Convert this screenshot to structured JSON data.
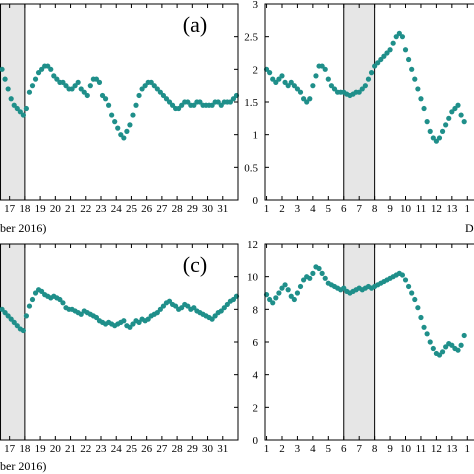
{
  "chart_data": [
    {
      "type": "scatter",
      "panel_label": "(a)",
      "xlabel": "ber 2016)",
      "ylabel": "",
      "ylim": null,
      "x_ticks": [
        "17",
        "18",
        "19",
        "20",
        "21",
        "22",
        "23",
        "24",
        "25",
        "26",
        "27",
        "28",
        "29",
        "30",
        "31"
      ],
      "y_ticks": [],
      "shaded_day_range": [
        16.4,
        18
      ],
      "marker_color": "#1f8f8a",
      "series": [
        {
          "x": [
            16.3,
            16.5,
            16.7,
            16.9,
            17.1,
            17.3,
            17.5,
            17.7,
            17.9,
            18.1,
            18.3,
            18.5,
            18.7,
            18.9,
            19.1,
            19.3,
            19.5,
            19.7,
            19.9,
            20.1,
            20.3,
            20.5,
            20.7,
            20.9,
            21.1,
            21.3,
            21.5,
            21.7,
            21.9,
            22.1,
            22.3,
            22.5,
            22.7,
            22.9,
            23.1,
            23.3,
            23.5,
            23.7,
            23.9,
            24.1,
            24.3,
            24.5,
            24.7,
            24.9,
            25.1,
            25.3,
            25.5,
            25.7,
            25.9,
            26.1,
            26.3,
            26.5,
            26.7,
            26.9,
            27.1,
            27.3,
            27.5,
            27.7,
            27.9,
            28.1,
            28.3,
            28.5,
            28.7,
            28.9,
            29.1,
            29.3,
            29.5,
            29.7,
            29.9,
            30.1,
            30.3,
            30.5,
            30.7,
            30.9,
            31.1,
            31.3,
            31.5,
            31.7,
            31.9
          ],
          "y": [
            2.1,
            2.0,
            1.85,
            1.7,
            1.55,
            1.45,
            1.4,
            1.35,
            1.3,
            1.4,
            1.65,
            1.75,
            1.85,
            1.95,
            2.0,
            2.05,
            2.05,
            2.0,
            1.9,
            1.85,
            1.8,
            1.8,
            1.75,
            1.7,
            1.7,
            1.75,
            1.8,
            1.7,
            1.65,
            1.6,
            1.75,
            1.85,
            1.85,
            1.8,
            1.6,
            1.55,
            1.45,
            1.3,
            1.2,
            1.1,
            1.0,
            0.95,
            1.05,
            1.15,
            1.3,
            1.45,
            1.6,
            1.7,
            1.75,
            1.8,
            1.8,
            1.75,
            1.7,
            1.65,
            1.6,
            1.55,
            1.5,
            1.45,
            1.4,
            1.4,
            1.45,
            1.5,
            1.5,
            1.45,
            1.45,
            1.5,
            1.5,
            1.45,
            1.45,
            1.45,
            1.45,
            1.5,
            1.5,
            1.45,
            1.5,
            1.5,
            1.5,
            1.55,
            1.6
          ]
        }
      ]
    },
    {
      "type": "scatter",
      "panel_label": "",
      "xlabel": "D",
      "ylabel": "",
      "ylim": [
        0,
        3
      ],
      "x_ticks": [
        "1",
        "2",
        "3",
        "4",
        "5",
        "6",
        "7",
        "8",
        "9",
        "10",
        "11",
        "12",
        "13",
        "1"
      ],
      "y_ticks": [
        "0",
        "0.5",
        "1",
        "1.5",
        "2",
        "2.5",
        "3"
      ],
      "shaded_day_range": [
        6,
        8
      ],
      "marker_color": "#1f8f8a",
      "series": [
        {
          "x": [
            1.0,
            1.2,
            1.4,
            1.6,
            1.8,
            2.0,
            2.2,
            2.4,
            2.6,
            2.8,
            3.0,
            3.2,
            3.4,
            3.6,
            3.8,
            4.0,
            4.2,
            4.4,
            4.6,
            4.8,
            5.0,
            5.2,
            5.4,
            5.6,
            5.8,
            6.0,
            6.2,
            6.4,
            6.6,
            6.8,
            7.0,
            7.2,
            7.4,
            7.6,
            7.8,
            8.0,
            8.2,
            8.4,
            8.6,
            8.8,
            9.0,
            9.2,
            9.4,
            9.6,
            9.8,
            10.0,
            10.2,
            10.4,
            10.6,
            10.8,
            11.0,
            11.2,
            11.4,
            11.6,
            11.8,
            12.0,
            12.2,
            12.4,
            12.6,
            12.8,
            13.0,
            13.2,
            13.4,
            13.6,
            13.8
          ],
          "y": [
            2.0,
            1.95,
            1.85,
            1.8,
            1.85,
            1.9,
            1.8,
            1.75,
            1.8,
            1.75,
            1.7,
            1.65,
            1.55,
            1.5,
            1.55,
            1.75,
            1.9,
            2.05,
            2.05,
            2.0,
            1.85,
            1.75,
            1.7,
            1.65,
            1.65,
            1.65,
            1.62,
            1.6,
            1.62,
            1.65,
            1.65,
            1.7,
            1.75,
            1.85,
            1.95,
            2.05,
            2.1,
            2.15,
            2.2,
            2.25,
            2.3,
            2.4,
            2.5,
            2.55,
            2.5,
            2.3,
            2.15,
            2.0,
            1.85,
            1.7,
            1.55,
            1.4,
            1.2,
            1.05,
            0.95,
            0.9,
            0.95,
            1.05,
            1.15,
            1.25,
            1.35,
            1.4,
            1.45,
            1.3,
            1.2
          ]
        }
      ]
    },
    {
      "type": "scatter",
      "panel_label": "(c)",
      "xlabel": "ber 2016)",
      "ylabel": "",
      "ylim": null,
      "x_ticks": [
        "17",
        "18",
        "19",
        "20",
        "21",
        "22",
        "23",
        "24",
        "25",
        "26",
        "27",
        "28",
        "29",
        "30",
        "31"
      ],
      "y_ticks": [],
      "shaded_day_range": [
        16.4,
        18
      ],
      "marker_color": "#1f8f8a",
      "series": [
        {
          "x": [
            16.3,
            16.5,
            16.7,
            16.9,
            17.1,
            17.3,
            17.5,
            17.7,
            17.9,
            18.1,
            18.3,
            18.5,
            18.7,
            18.9,
            19.1,
            19.3,
            19.5,
            19.7,
            19.9,
            20.1,
            20.3,
            20.5,
            20.7,
            20.9,
            21.1,
            21.3,
            21.5,
            21.7,
            21.9,
            22.1,
            22.3,
            22.5,
            22.7,
            22.9,
            23.1,
            23.3,
            23.5,
            23.7,
            23.9,
            24.1,
            24.3,
            24.5,
            24.7,
            24.9,
            25.1,
            25.3,
            25.5,
            25.7,
            25.9,
            26.1,
            26.3,
            26.5,
            26.7,
            26.9,
            27.1,
            27.3,
            27.5,
            27.7,
            27.9,
            28.1,
            28.3,
            28.5,
            28.7,
            28.9,
            29.1,
            29.3,
            29.5,
            29.7,
            29.9,
            30.1,
            30.3,
            30.5,
            30.7,
            30.9,
            31.1,
            31.3,
            31.5,
            31.7,
            31.9
          ],
          "y": [
            8.2,
            8.0,
            7.8,
            7.6,
            7.4,
            7.2,
            7.0,
            6.8,
            6.7,
            7.6,
            8.2,
            8.6,
            9.0,
            9.2,
            9.1,
            8.9,
            8.8,
            8.7,
            8.8,
            8.7,
            8.6,
            8.4,
            8.1,
            8.0,
            8.0,
            7.9,
            7.8,
            7.7,
            7.9,
            7.8,
            7.7,
            7.6,
            7.5,
            7.3,
            7.2,
            7.1,
            7.2,
            7.1,
            7.0,
            7.1,
            7.2,
            7.3,
            7.0,
            6.9,
            7.1,
            7.3,
            7.2,
            7.4,
            7.3,
            7.4,
            7.6,
            7.7,
            7.8,
            8.0,
            8.2,
            8.4,
            8.5,
            8.3,
            8.2,
            8.0,
            8.1,
            8.3,
            8.2,
            8.0,
            8.1,
            7.9,
            7.8,
            7.7,
            7.6,
            7.5,
            7.4,
            7.6,
            7.8,
            7.9,
            8.1,
            8.3,
            8.5,
            8.6,
            8.8
          ]
        }
      ]
    },
    {
      "type": "scatter",
      "panel_label": "",
      "xlabel": "",
      "ylabel": "",
      "ylim": [
        0,
        12
      ],
      "x_ticks": [
        "1",
        "2",
        "3",
        "4",
        "5",
        "6",
        "7",
        "8",
        "9",
        "10",
        "11",
        "12",
        "13",
        "1"
      ],
      "y_ticks": [
        "0",
        "2",
        "4",
        "6",
        "8",
        "10",
        "12"
      ],
      "shaded_day_range": [
        6,
        8
      ],
      "marker_color": "#1f8f8a",
      "series": [
        {
          "x": [
            1.0,
            1.2,
            1.4,
            1.6,
            1.8,
            2.0,
            2.2,
            2.4,
            2.6,
            2.8,
            3.0,
            3.2,
            3.4,
            3.6,
            3.8,
            4.0,
            4.2,
            4.4,
            4.6,
            4.8,
            5.0,
            5.2,
            5.4,
            5.6,
            5.8,
            6.0,
            6.2,
            6.4,
            6.6,
            6.8,
            7.0,
            7.2,
            7.4,
            7.6,
            7.8,
            8.0,
            8.2,
            8.4,
            8.6,
            8.8,
            9.0,
            9.2,
            9.4,
            9.6,
            9.8,
            10.0,
            10.2,
            10.4,
            10.6,
            10.8,
            11.0,
            11.2,
            11.4,
            11.6,
            11.8,
            12.0,
            12.2,
            12.4,
            12.6,
            12.8,
            13.0,
            13.2,
            13.4,
            13.6,
            13.8
          ],
          "y": [
            8.9,
            8.6,
            8.4,
            8.7,
            9.0,
            9.3,
            9.5,
            9.2,
            8.8,
            8.6,
            9.0,
            9.4,
            9.8,
            10.0,
            9.9,
            10.2,
            10.6,
            10.5,
            10.2,
            9.9,
            9.6,
            9.5,
            9.4,
            9.3,
            9.2,
            9.3,
            9.1,
            9.0,
            9.1,
            9.2,
            9.3,
            9.2,
            9.3,
            9.4,
            9.3,
            9.4,
            9.5,
            9.6,
            9.7,
            9.8,
            9.9,
            10.0,
            10.1,
            10.2,
            10.1,
            9.8,
            9.4,
            9.0,
            8.6,
            8.1,
            7.5,
            6.9,
            6.5,
            6.0,
            5.6,
            5.3,
            5.2,
            5.4,
            5.7,
            5.9,
            5.8,
            5.6,
            5.5,
            5.8,
            6.4
          ]
        }
      ]
    }
  ]
}
